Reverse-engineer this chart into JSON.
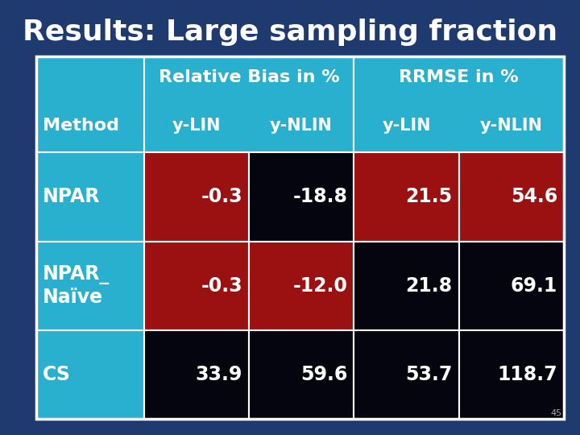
{
  "title": "Results: Large sampling fraction",
  "title_color": "#FFFFFF",
  "title_fontsize": 26,
  "background_color": "#1e3a6e",
  "header_bg": "#29b0ce",
  "col1_bg": "#29b0ce",
  "cell_colors": [
    [
      "#9b1010",
      "#050510",
      "#9b1010",
      "#9b1010"
    ],
    [
      "#9b1010",
      "#9b1010",
      "#050510",
      "#050510"
    ],
    [
      "#050510",
      "#050510",
      "#050510",
      "#050510"
    ]
  ],
  "header_top_labels": [
    "Relative Bias in %",
    "RRMSE in %"
  ],
  "sub_headers": [
    "y-LIN",
    "y-NLIN",
    "y-LIN",
    "y-NLIN"
  ],
  "method_label": "Method",
  "rows": [
    {
      "method": "NPAR",
      "values": [
        "-0.3",
        "-18.8",
        "21.5",
        "54.6"
      ]
    },
    {
      "method": "NPAR_\nNaïve",
      "values": [
        "-0.3",
        "-12.0",
        "21.8",
        "69.1"
      ]
    },
    {
      "method": "CS",
      "values": [
        "33.9",
        "59.6",
        "53.7",
        "118.7"
      ]
    }
  ],
  "cell_text_color": "#FFFFFF",
  "value_fontsize": 17,
  "method_fontsize": 17,
  "header_fontsize": 16,
  "subheader_fontsize": 15,
  "page_num": "45"
}
